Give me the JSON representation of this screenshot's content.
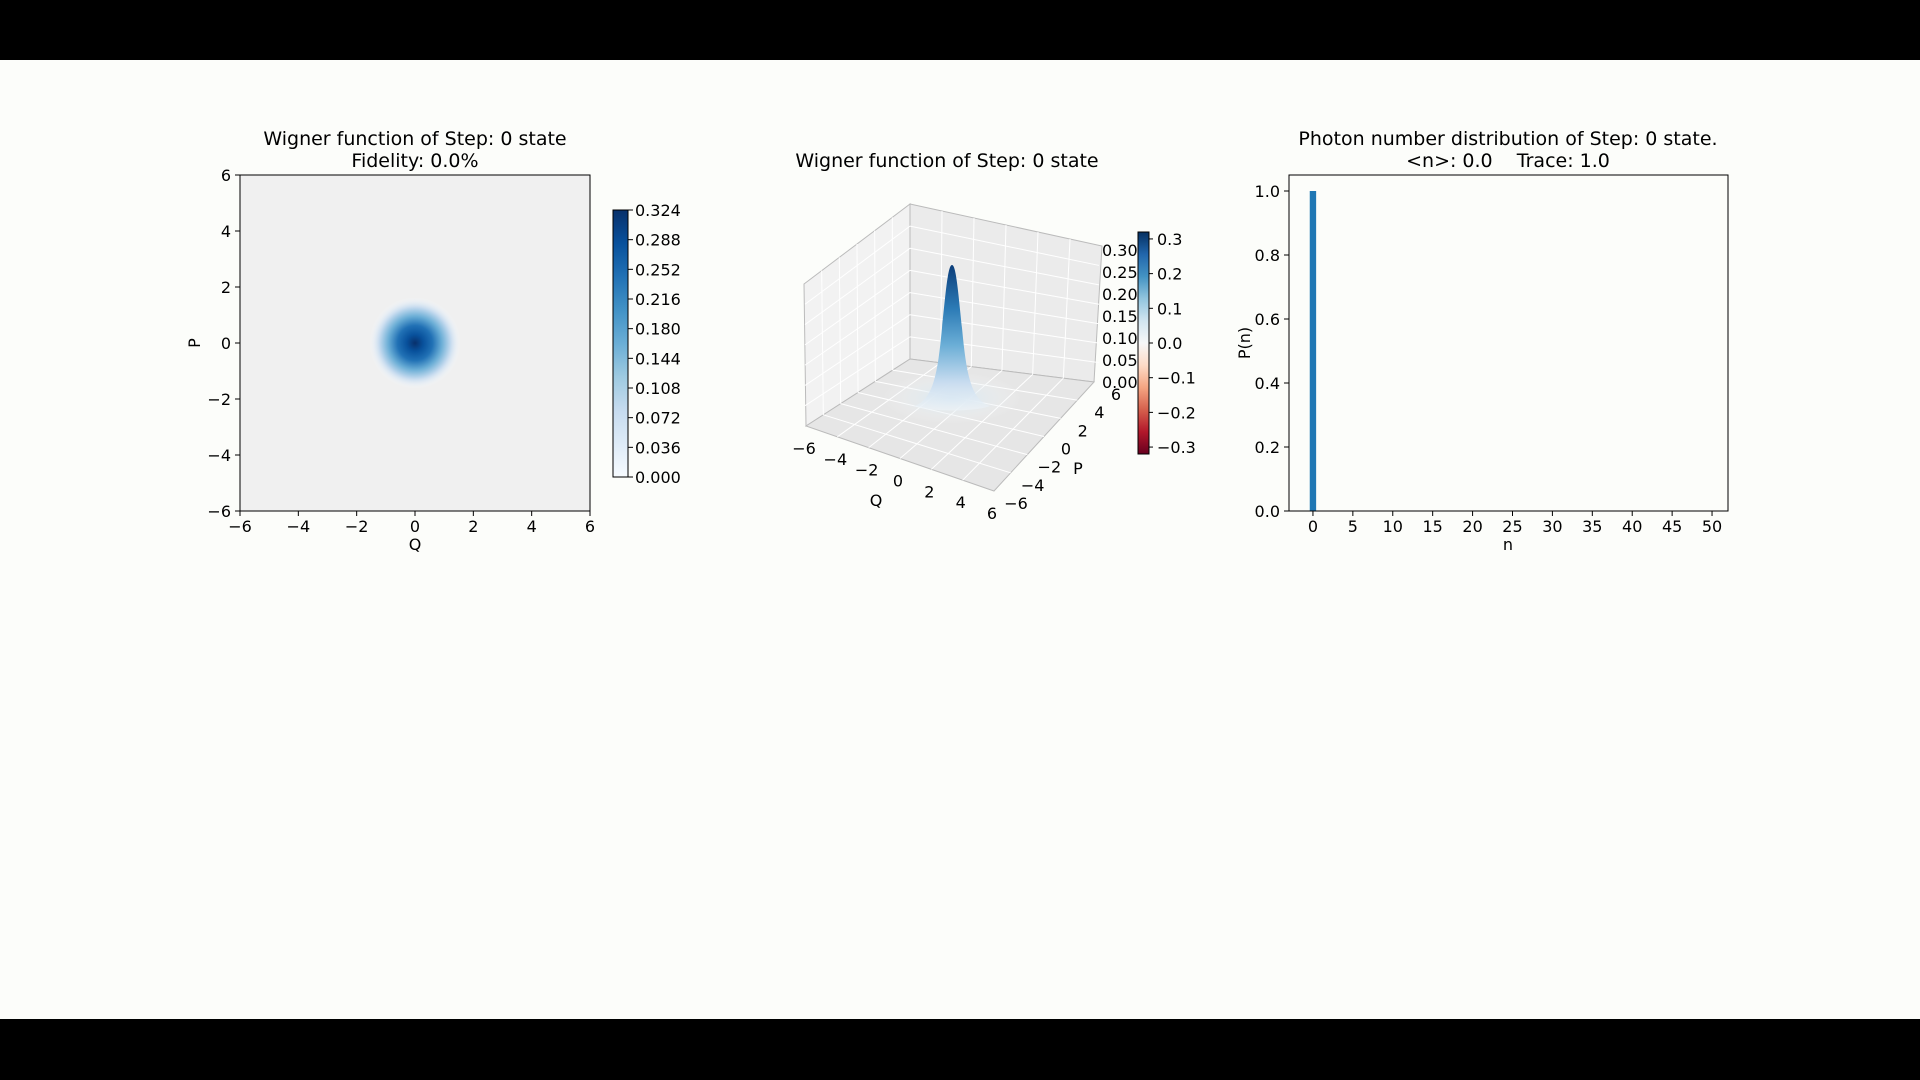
{
  "colors": {
    "frame_bg": "#000000",
    "figure_bg": "#fcfdfa",
    "blues_dark": "#08306b",
    "blues_mid": "#2171b5",
    "bar_color": "#1f77b4",
    "rdbu_low": "#67001f"
  },
  "chart_data": [
    {
      "type": "heatmap",
      "title": "Wigner function of Step: 0 state",
      "subtitle": "Fidelity: 0.0%",
      "xlabel": "Q",
      "ylabel": "P",
      "xlim": [
        -6,
        6
      ],
      "ylim": [
        -6,
        6
      ],
      "xticks": [
        "−6",
        "−4",
        "−2",
        "0",
        "2",
        "4",
        "6"
      ],
      "yticks": [
        "−6",
        "−4",
        "−2",
        "0",
        "2",
        "4",
        "6"
      ],
      "peak": {
        "q": 0,
        "p": 0,
        "value": 0.318
      },
      "colormap": "Blues",
      "colorbar_range": [
        0.0,
        0.324
      ],
      "colorbar_ticks": [
        "0.000",
        "0.036",
        "0.072",
        "0.108",
        "0.144",
        "0.180",
        "0.216",
        "0.252",
        "0.288",
        "0.324"
      ],
      "grid": false
    },
    {
      "type": "surface",
      "title": "Wigner function of Step: 0 state",
      "xlabel": "Q",
      "ylabel": "P",
      "xlim": [
        -6,
        6
      ],
      "ylim": [
        -6,
        6
      ],
      "zlim": [
        0.0,
        0.32
      ],
      "xticks": [
        "−6",
        "−4",
        "−2",
        "0",
        "2",
        "4",
        "6"
      ],
      "yticks": [
        "−6",
        "−4",
        "−2",
        "0",
        "2",
        "4",
        "6"
      ],
      "zticks": [
        "0.00",
        "0.05",
        "0.10",
        "0.15",
        "0.20",
        "0.25",
        "0.30"
      ],
      "peak": {
        "q": 0,
        "p": 0,
        "value": 0.318
      },
      "colormap": "RdBu",
      "colorbar_range": [
        -0.32,
        0.32
      ],
      "colorbar_ticks": [
        "−0.3",
        "−0.2",
        "−0.1",
        "0.0",
        "0.1",
        "0.2",
        "0.3"
      ],
      "grid": true
    },
    {
      "type": "bar",
      "title": "Photon number distribution of Step: 0 state.",
      "subtitle": "<n>: 0.0    Trace: 1.0",
      "xlabel": "n",
      "ylabel": "P(n)",
      "xlim": [
        -3,
        52
      ],
      "ylim": [
        0,
        1.05
      ],
      "xticks": [
        "0",
        "5",
        "10",
        "15",
        "20",
        "25",
        "30",
        "35",
        "40",
        "45",
        "50"
      ],
      "yticks": [
        "0.0",
        "0.2",
        "0.4",
        "0.6",
        "0.8",
        "1.0"
      ],
      "x": [
        0
      ],
      "values": [
        1.0
      ],
      "grid": false
    }
  ]
}
